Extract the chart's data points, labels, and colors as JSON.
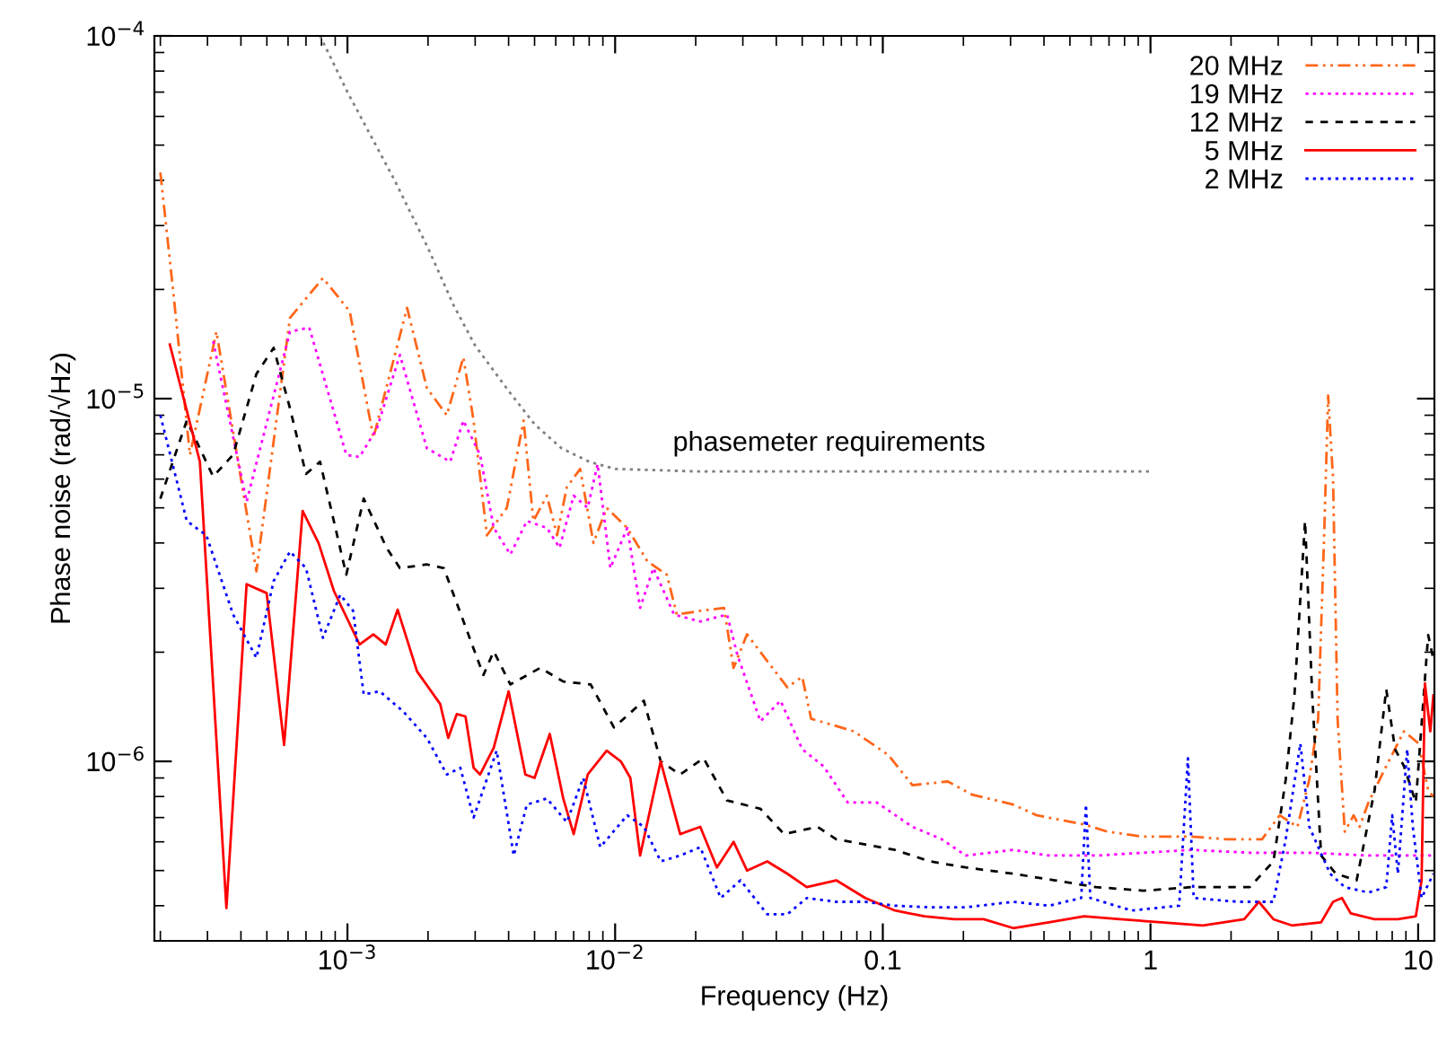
{
  "chart_data": {
    "type": "line",
    "xlabel": "Frequency (Hz)",
    "ylabel": "Phase noise (rad/√Hz)",
    "log": "xy",
    "grid": false,
    "legend": "top right",
    "xlim": [
      0.00019,
      11.5
    ],
    "ylim": [
      3.2e-07,
      0.0001
    ],
    "xticks": [
      {
        "value": 0.001,
        "label": "10$^{−3}$"
      },
      {
        "value": 0.01,
        "label": "10$^{−2}$"
      },
      0.1,
      1,
      10
    ],
    "yticks": [
      {
        "value": 1e-06,
        "label": "10$^{−6}$"
      },
      {
        "value": 1e-05,
        "label": "10$^{−5}$"
      },
      {
        "value": 0.0001,
        "label": "10$^{−4}$"
      }
    ],
    "annotations": [
      {
        "text": "phasemeter requirements",
        "x": 0.063,
        "y": 6.3e-06
      }
    ],
    "series": [
      {
        "name": "20 MHz",
        "color": "#ff6619",
        "line_style": "dashdot",
        "x": [
          0.0002,
          0.000223,
          0.000258,
          0.000324,
          0.000457,
          0.00061,
          0.00081,
          0.00102,
          0.00125,
          0.00167,
          0.00198,
          0.00235,
          0.00271,
          0.00296,
          0.00332,
          0.00394,
          0.00455,
          0.00495,
          0.00556,
          0.00607,
          0.0066,
          0.0074,
          0.0083,
          0.0093,
          0.0111,
          0.0132,
          0.0156,
          0.017,
          0.0208,
          0.0255,
          0.0277,
          0.0311,
          0.037,
          0.044,
          0.05,
          0.054,
          0.065,
          0.078,
          0.105,
          0.129,
          0.175,
          0.215,
          0.307,
          0.376,
          0.565,
          0.69,
          0.94,
          1.42,
          1.92,
          2.61,
          3.04,
          3.54,
          3.92,
          4.23,
          4.45,
          4.61,
          4.81,
          5.0,
          5.32,
          5.74,
          6.04,
          6.52,
          7.6,
          8.85,
          10.05,
          10.9,
          11.4
        ],
        "values": [
          4.2e-05,
          2e-05,
          7e-06,
          1.53e-05,
          3.34e-06,
          1.67e-05,
          2.15e-05,
          1.74e-05,
          7.8e-06,
          1.78e-05,
          1.07e-05,
          9e-06,
          1.3e-05,
          8.7e-06,
          4.2e-06,
          5e-06,
          8.7e-06,
          4.6e-06,
          5.4e-06,
          4.2e-06,
          5.7e-06,
          6.4e-06,
          4e-06,
          5e-06,
          4.4e-06,
          3.56e-06,
          3.27e-06,
          2.54e-06,
          2.6e-06,
          2.65e-06,
          1.81e-06,
          2.24e-06,
          1.89e-06,
          1.6e-06,
          1.71e-06,
          1.31e-06,
          1.26e-06,
          1.21e-06,
          1.04e-06,
          8.6e-07,
          8.8e-07,
          8.1e-07,
          7.6e-07,
          7.1e-07,
          6.7e-07,
          6.4e-07,
          6.2e-07,
          6.2e-07,
          6.1e-07,
          6.1e-07,
          7.1e-07,
          6.6e-07,
          8.9e-07,
          1.31e-06,
          4.1e-06,
          1.02e-05,
          6e-06,
          1.31e-06,
          6.4e-07,
          7.1e-07,
          6.6e-07,
          7.7e-07,
          9.7e-07,
          1.21e-06,
          1.12e-06,
          8.3e-07,
          8e-07
        ]
      },
      {
        "name": "19 MHz",
        "color": "#ff00ff",
        "line_style": "dotted",
        "x": [
          0.000315,
          0.00042,
          0.00061,
          0.00072,
          0.00099,
          0.00111,
          0.00129,
          0.00157,
          0.00198,
          0.00242,
          0.00271,
          0.00313,
          0.00352,
          0.00406,
          0.00468,
          0.00556,
          0.0062,
          0.007,
          0.0079,
          0.0086,
          0.0096,
          0.0111,
          0.0124,
          0.0139,
          0.0166,
          0.0208,
          0.0262,
          0.0286,
          0.0349,
          0.0415,
          0.05,
          0.06,
          0.074,
          0.095,
          0.129,
          0.166,
          0.204,
          0.307,
          0.417,
          0.627,
          0.94,
          1.42,
          2.35,
          3.92,
          6.52,
          11.4
        ],
        "values": [
          1.44e-05,
          5.2e-06,
          1.53e-05,
          1.57e-05,
          7e-06,
          6.9e-06,
          8.3e-06,
          1.32e-05,
          7.3e-06,
          6.7e-06,
          8.7e-06,
          7e-06,
          4.4e-06,
          3.72e-06,
          4.6e-06,
          4.4e-06,
          3.88e-06,
          5.4e-06,
          5e-06,
          6.6e-06,
          3.41e-06,
          4.4e-06,
          2.65e-06,
          3.41e-06,
          2.54e-06,
          2.43e-06,
          2.54e-06,
          1.97e-06,
          1.29e-06,
          1.47e-06,
          1.08e-06,
          9.7e-07,
          7.7e-07,
          7.7e-07,
          6.6e-07,
          6.1e-07,
          5.5e-07,
          5.7e-07,
          5.5e-07,
          5.5e-07,
          5.6e-07,
          5.7e-07,
          5.6e-07,
          5.6e-07,
          5.5e-07,
          5.5e-07
        ]
      },
      {
        "name": "12 MHz",
        "color": "#000000",
        "line_style": "dashed",
        "x": [
          0.0002,
          0.000251,
          0.000315,
          0.000374,
          0.000457,
          0.00053,
          0.00061,
          0.0007,
          0.00079,
          0.00099,
          0.00115,
          0.0014,
          0.00157,
          0.00198,
          0.00229,
          0.00322,
          0.00352,
          0.00406,
          0.00525,
          0.0064,
          0.0081,
          0.0099,
          0.0128,
          0.0148,
          0.0175,
          0.0214,
          0.0262,
          0.0349,
          0.0428,
          0.057,
          0.067,
          0.086,
          0.111,
          0.15,
          0.204,
          0.307,
          0.439,
          0.627,
          0.94,
          1.42,
          2.35,
          2.88,
          3.2,
          3.45,
          3.78,
          4.02,
          4.34,
          4.93,
          5.89,
          6.87,
          7.6,
          8.2,
          8.85,
          9.8,
          10.9,
          11.4
        ],
        "values": [
          5.3e-06,
          8.7e-06,
          6.1e-06,
          7e-06,
          1.17e-05,
          1.38e-05,
          9.4e-06,
          6.2e-06,
          6.7e-06,
          3.27e-06,
          5.3e-06,
          3.88e-06,
          3.41e-06,
          3.49e-06,
          3.41e-06,
          1.73e-06,
          2.01e-06,
          1.63e-06,
          1.81e-06,
          1.66e-06,
          1.63e-06,
          1.24e-06,
          1.47e-06,
          1e-06,
          9.2e-07,
          1.02e-06,
          7.8e-07,
          7.4e-07,
          6.3e-07,
          6.6e-07,
          6.1e-07,
          5.9e-07,
          5.7e-07,
          5.3e-07,
          5.1e-07,
          4.9e-07,
          4.7e-07,
          4.5e-07,
          4.4e-07,
          4.5e-07,
          4.5e-07,
          5.3e-07,
          8.9e-07,
          1.52e-06,
          4.6e-06,
          1.52e-06,
          5.5e-07,
          4.9e-07,
          4.7e-07,
          8.3e-07,
          1.58e-06,
          1.08e-06,
          9.7e-07,
          7.7e-07,
          2.23e-06,
          1.91e-06
        ]
      },
      {
        "name": "5 MHz",
        "color": "#ff0000",
        "line_style": "solid",
        "x": [
          0.000217,
          0.000281,
          0.000353,
          0.00042,
          0.000499,
          0.00058,
          0.00068,
          0.00078,
          0.00089,
          0.00111,
          0.00125,
          0.00139,
          0.00154,
          0.00182,
          0.00222,
          0.00238,
          0.00256,
          0.00276,
          0.00296,
          0.00313,
          0.00352,
          0.004,
          0.00462,
          0.005,
          0.0057,
          0.0064,
          0.007,
          0.0079,
          0.0093,
          0.0105,
          0.0114,
          0.0124,
          0.0148,
          0.0175,
          0.0208,
          0.024,
          0.0277,
          0.0311,
          0.037,
          0.044,
          0.052,
          0.067,
          0.086,
          0.111,
          0.143,
          0.185,
          0.238,
          0.307,
          0.417,
          0.565,
          0.77,
          1.1,
          1.57,
          2.24,
          2.54,
          2.88,
          3.37,
          4.34,
          4.81,
          5.19,
          5.6,
          6.87,
          8.4,
          9.8,
          10.3,
          10.6,
          11.1,
          11.4
        ],
        "values": [
          1.41e-05,
          6.7e-06,
          3.94e-07,
          3.08e-06,
          2.91e-06,
          1.11e-06,
          4.9e-06,
          4e-06,
          2.95e-06,
          2.1e-06,
          2.24e-06,
          2.1e-06,
          2.62e-06,
          1.77e-06,
          1.44e-06,
          1.16e-06,
          1.35e-06,
          1.33e-06,
          9.6e-07,
          9.2e-07,
          1.09e-06,
          1.56e-06,
          9.2e-07,
          9e-07,
          1.19e-06,
          7.9e-07,
          6.3e-07,
          9.2e-07,
          1.07e-06,
          1e-06,
          9e-07,
          5.5e-07,
          1e-06,
          6.3e-07,
          6.6e-07,
          5.1e-07,
          6e-07,
          5e-07,
          5.3e-07,
          4.9e-07,
          4.5e-07,
          4.7e-07,
          4.2e-07,
          3.88e-07,
          3.74e-07,
          3.67e-07,
          3.67e-07,
          3.47e-07,
          3.6e-07,
          3.74e-07,
          3.67e-07,
          3.6e-07,
          3.53e-07,
          3.67e-07,
          4.1e-07,
          3.67e-07,
          3.53e-07,
          3.6e-07,
          4.1e-07,
          4.2e-07,
          3.81e-07,
          3.67e-07,
          3.67e-07,
          3.74e-07,
          4.7e-07,
          1.64e-06,
          1.21e-06,
          1.52e-06
        ]
      },
      {
        "name": "2 MHz",
        "color": "#0000ff",
        "line_style": "dotted",
        "x": [
          0.0002,
          0.000251,
          0.000297,
          0.000374,
          0.000457,
          0.00053,
          0.00061,
          0.0007,
          0.00081,
          0.00094,
          0.00105,
          0.00115,
          0.00132,
          0.00162,
          0.00198,
          0.00235,
          0.00264,
          0.00296,
          0.00361,
          0.00418,
          0.00468,
          0.00556,
          0.0066,
          0.0076,
          0.0088,
          0.0111,
          0.0128,
          0.0148,
          0.0175,
          0.0208,
          0.0248,
          0.0294,
          0.037,
          0.044,
          0.052,
          0.067,
          0.086,
          0.111,
          0.15,
          0.204,
          0.307,
          0.417,
          0.551,
          0.574,
          0.596,
          0.85,
          1.28,
          1.38,
          1.45,
          2.13,
          2.88,
          3.2,
          3.63,
          3.92,
          4.69,
          5.32,
          6.52,
          7.6,
          8.0,
          8.4,
          9.1,
          9.55,
          10.3,
          11.4
        ],
        "values": [
          9e-06,
          4.6e-06,
          4.2e-06,
          2.54e-06,
          1.93e-06,
          3.14e-06,
          3.79e-06,
          3.41e-06,
          2.19e-06,
          2.88e-06,
          2.6e-06,
          1.53e-06,
          1.56e-06,
          1.37e-06,
          1.16e-06,
          9.2e-07,
          9.6e-07,
          7e-07,
          1.07e-06,
          5.5e-07,
          7.6e-07,
          7.9e-07,
          6.8e-07,
          9e-07,
          5.8e-07,
          7.1e-07,
          6.6e-07,
          5.3e-07,
          5.5e-07,
          5.8e-07,
          4.2e-07,
          4.7e-07,
          3.79e-07,
          3.79e-07,
          4.2e-07,
          4.1e-07,
          4.1e-07,
          4e-07,
          3.96e-07,
          3.96e-07,
          4.1e-07,
          4e-07,
          4.2e-07,
          7.6e-07,
          4.2e-07,
          3.88e-07,
          4e-07,
          1.02e-06,
          4.2e-07,
          4.1e-07,
          4.1e-07,
          6.1e-07,
          1.12e-06,
          6.6e-07,
          4.9e-07,
          4.5e-07,
          4.35e-07,
          4.5e-07,
          7.1e-07,
          4.9e-07,
          1.08e-06,
          6.6e-07,
          4.2e-07,
          4.9e-07
        ]
      },
      {
        "color": "#808080",
        "line_style": "dotted",
        "x": [
          0.00079,
          0.001,
          0.0015,
          0.002,
          0.0025,
          0.003,
          0.004,
          0.005,
          0.0063,
          0.008,
          0.01,
          0.02,
          1.0
        ],
        "values": [
          0.0001,
          7e-05,
          4e-05,
          2.6e-05,
          1.8e-05,
          1.4e-05,
          1.05e-05,
          8.5e-06,
          7.3e-06,
          6.7e-06,
          6.4e-06,
          6.3e-06,
          6.3e-06
        ]
      }
    ]
  }
}
